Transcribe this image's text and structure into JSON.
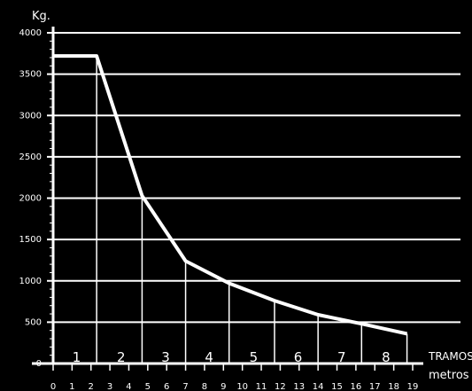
{
  "chart_data": {
    "type": "line",
    "ylabel": "Kg.",
    "xlabel_top": "TRAMOS",
    "xlabel_bottom": "metros",
    "ylim": [
      0,
      4000
    ],
    "xlim": [
      0,
      19
    ],
    "y_ticks": [
      0,
      500,
      1000,
      1500,
      2000,
      2500,
      3000,
      3500,
      4000
    ],
    "y_tick_labels": [
      "0",
      "500",
      "1000",
      "1500",
      "2000",
      "2500",
      "3000",
      "3500",
      "4000"
    ],
    "x_ticks": [
      0,
      1,
      2,
      3,
      4,
      5,
      6,
      7,
      8,
      9,
      10,
      11,
      12,
      13,
      14,
      15,
      16,
      17,
      18,
      19
    ],
    "x_tick_labels": [
      "0",
      "1",
      "2",
      "3",
      "4",
      "5",
      "6",
      "7",
      "8",
      "9",
      "10",
      "11",
      "12",
      "13",
      "14",
      "15",
      "16",
      "17",
      "18",
      "19"
    ],
    "grid": "horizontal",
    "series": [
      {
        "x": [
          0,
          2.3,
          4.7,
          7,
          9.3,
          11.7,
          14,
          16.3,
          18.7
        ],
        "values": [
          3720,
          3720,
          2030,
          1240,
          970,
          760,
          590,
          480,
          360
        ]
      }
    ],
    "tramos": [
      {
        "label": "1",
        "x_start": 0,
        "x_end": 2.3
      },
      {
        "label": "2",
        "x_start": 2.3,
        "x_end": 4.7
      },
      {
        "label": "3",
        "x_start": 4.7,
        "x_end": 7
      },
      {
        "label": "4",
        "x_start": 7,
        "x_end": 9.3
      },
      {
        "label": "5",
        "x_start": 9.3,
        "x_end": 11.7
      },
      {
        "label": "6",
        "x_start": 11.7,
        "x_end": 14
      },
      {
        "label": "7",
        "x_start": 14,
        "x_end": 16.3
      },
      {
        "label": "8",
        "x_start": 16.3,
        "x_end": 18.7
      }
    ],
    "colors": {
      "background": "#000000",
      "foreground": "#ffffff"
    }
  }
}
